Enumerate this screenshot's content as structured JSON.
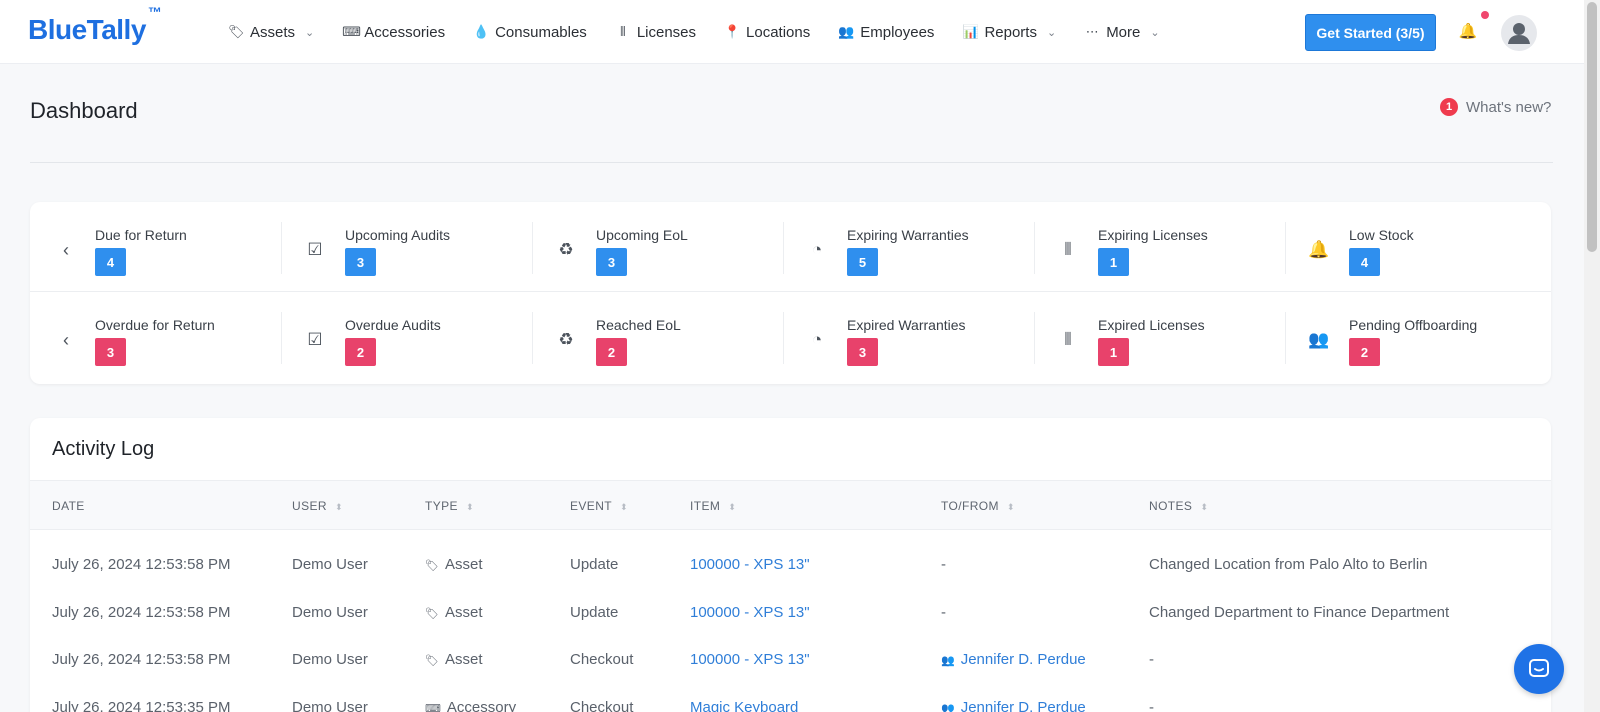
{
  "brand": {
    "name": "BlueTally",
    "tm": "™",
    "color": "#1e6fe0"
  },
  "nav": [
    {
      "label": "Assets",
      "icon": "tag-icon",
      "glyph": "🏷",
      "dropdown": true
    },
    {
      "label": "Accessories",
      "icon": "keyboard-icon",
      "glyph": "⌨",
      "dropdown": false
    },
    {
      "label": "Consumables",
      "icon": "drop-icon",
      "glyph": "💧",
      "dropdown": false
    },
    {
      "label": "Licenses",
      "icon": "barcode-icon",
      "glyph": "⦀",
      "dropdown": false
    },
    {
      "label": "Locations",
      "icon": "map-pin-icon",
      "glyph": "📍",
      "dropdown": false
    },
    {
      "label": "Employees",
      "icon": "users-icon",
      "glyph": "👥",
      "dropdown": false
    },
    {
      "label": "Reports",
      "icon": "bar-chart-icon",
      "glyph": "📊",
      "dropdown": true
    },
    {
      "label": "More",
      "icon": "ellipsis-icon",
      "glyph": "⋯",
      "dropdown": true
    }
  ],
  "header_actions": {
    "get_started_label": "Get Started (3/5)",
    "accent": "#2f8fee"
  },
  "page": {
    "title": "Dashboard",
    "whats_new_label": "What's new?",
    "whats_new_count": "1"
  },
  "stats": {
    "colors": {
      "blue": "#2f8fee",
      "red": "#e8426b"
    },
    "row1": [
      {
        "label": "Due for Return",
        "value": "4",
        "icon": "chevron-left-icon",
        "glyph": "‹"
      },
      {
        "label": "Upcoming Audits",
        "value": "3",
        "icon": "checkbox-icon",
        "glyph": "☑"
      },
      {
        "label": "Upcoming EoL",
        "value": "3",
        "icon": "recycle-icon",
        "glyph": "♻"
      },
      {
        "label": "Expiring Warranties",
        "value": "5",
        "icon": "clock-history-icon",
        "glyph": "◔"
      },
      {
        "label": "Expiring Licenses",
        "value": "1",
        "icon": "barcode-icon",
        "glyph": "⦀"
      },
      {
        "label": "Low Stock",
        "value": "4",
        "icon": "bell-icon",
        "glyph": "🔔"
      }
    ],
    "row2": [
      {
        "label": "Overdue for Return",
        "value": "3",
        "icon": "chevron-left-icon",
        "glyph": "‹"
      },
      {
        "label": "Overdue Audits",
        "value": "2",
        "icon": "checkbox-icon",
        "glyph": "☑"
      },
      {
        "label": "Reached EoL",
        "value": "2",
        "icon": "recycle-icon",
        "glyph": "♻"
      },
      {
        "label": "Expired Warranties",
        "value": "3",
        "icon": "clock-history-icon",
        "glyph": "◔"
      },
      {
        "label": "Expired Licenses",
        "value": "1",
        "icon": "barcode-icon",
        "glyph": "⦀"
      },
      {
        "label": "Pending Offboarding",
        "value": "2",
        "icon": "users-icon",
        "glyph": "👥"
      }
    ]
  },
  "activity_log": {
    "title": "Activity Log",
    "columns": [
      "DATE",
      "USER",
      "TYPE",
      "EVENT",
      "ITEM",
      "TO/FROM",
      "NOTES"
    ],
    "rows": [
      {
        "date": "July 26, 2024 12:53:58 PM",
        "user": "Demo User",
        "type": "Asset",
        "type_icon": "tag-icon",
        "type_glyph": "🏷",
        "event": "Update",
        "item": "100000 - XPS 13\"",
        "to_from": "-",
        "to_from_icon": "",
        "notes": "Changed Location from Palo Alto to Berlin"
      },
      {
        "date": "July 26, 2024 12:53:58 PM",
        "user": "Demo User",
        "type": "Asset",
        "type_icon": "tag-icon",
        "type_glyph": "🏷",
        "event": "Update",
        "item": "100000 - XPS 13\"",
        "to_from": "-",
        "to_from_icon": "",
        "notes": "Changed Department to Finance Department"
      },
      {
        "date": "July 26, 2024 12:53:58 PM",
        "user": "Demo User",
        "type": "Asset",
        "type_icon": "tag-icon",
        "type_glyph": "🏷",
        "event": "Checkout",
        "item": "100000 - XPS 13\"",
        "to_from": "Jennifer D. Perdue",
        "to_from_icon": "users-icon",
        "notes": "-"
      },
      {
        "date": "July 26, 2024 12:53:35 PM",
        "user": "Demo User",
        "type": "Accessory",
        "type_icon": "keyboard-icon",
        "type_glyph": "⌨",
        "event": "Checkout",
        "item": "Magic Keyboard",
        "to_from": "Jennifer D. Perdue",
        "to_from_icon": "users-icon",
        "notes": "-"
      }
    ]
  }
}
